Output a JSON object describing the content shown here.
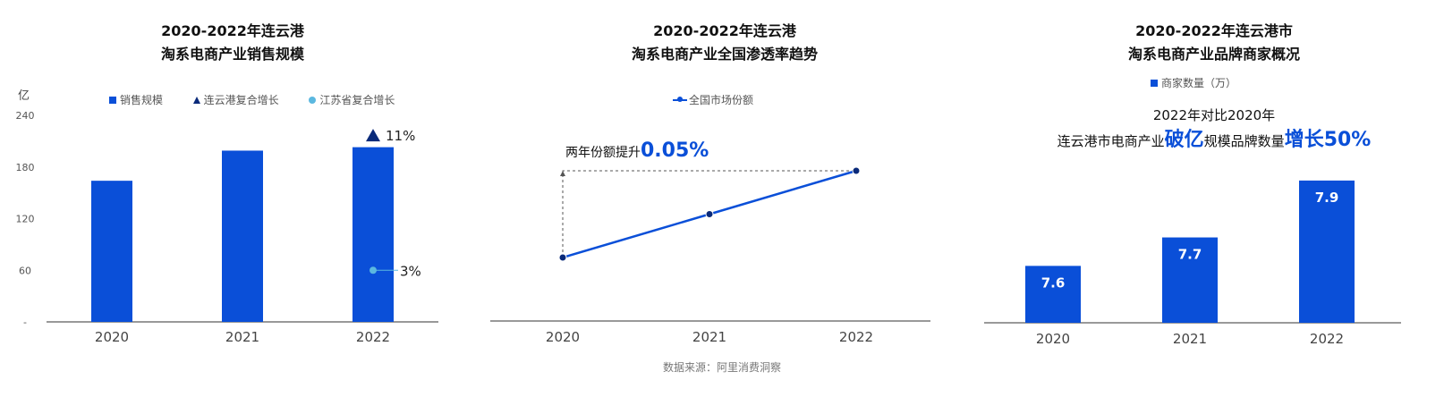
{
  "chart_data": [
    {
      "type": "bar",
      "title": [
        "2020-2022年连云港",
        "淘系电商产业销售规模"
      ],
      "ylabel": "亿",
      "ylim": [
        0,
        240
      ],
      "yticks": [
        "-",
        "60",
        "120",
        "180",
        "240"
      ],
      "categories": [
        "2020",
        "2021",
        "2022"
      ],
      "legend": [
        "销售规模",
        "连云港复合增长",
        "江苏省复合增长"
      ],
      "legend_position": "top",
      "series": [
        {
          "name": "销售规模",
          "values": [
            164,
            199,
            203
          ],
          "color": "#0a4fd8"
        }
      ],
      "annotations": [
        {
          "series": "连云港复合增长",
          "category": "2022",
          "value": 217,
          "label": "11%",
          "marker": "triangle",
          "color": "#0a2a7a"
        },
        {
          "series": "江苏省复合增长",
          "category": "2022",
          "value": 60,
          "label": "3%",
          "marker": "circle",
          "color": "#5bb8e0"
        }
      ]
    },
    {
      "type": "line",
      "title": [
        "2020-2022年连云港",
        "淘系电商产业全国渗透率趋势"
      ],
      "categories": [
        "2020",
        "2021",
        "2022"
      ],
      "legend": [
        "全国市场份额"
      ],
      "legend_position": "top",
      "series": [
        {
          "name": "全国市场份额",
          "values": [
            0.07,
            0.095,
            0.12
          ],
          "color": "#0a4fd8"
        }
      ],
      "annotation": {
        "prefix": "两年份额提升",
        "value": "0.05%"
      }
    },
    {
      "type": "bar",
      "title": [
        "2020-2022年连云港市",
        "淘系电商产业品牌商家概况"
      ],
      "categories": [
        "2020",
        "2021",
        "2022"
      ],
      "legend": [
        "商家数量（万）"
      ],
      "legend_position": "top",
      "series": [
        {
          "name": "商家数量（万）",
          "values": [
            7.6,
            7.7,
            7.9
          ],
          "labels": [
            "7.6",
            "7.7",
            "7.9"
          ],
          "color": "#0a4fd8"
        }
      ],
      "ylim": [
        7.4,
        7.95
      ],
      "annotation": {
        "line1": "2022年对比2020年",
        "line2_a": "连云港市电商产业",
        "line2_b": "破亿",
        "line2_c": "规模品牌数量",
        "line2_d": "增长50%"
      }
    }
  ],
  "source": "数据来源：阿里消费洞察"
}
